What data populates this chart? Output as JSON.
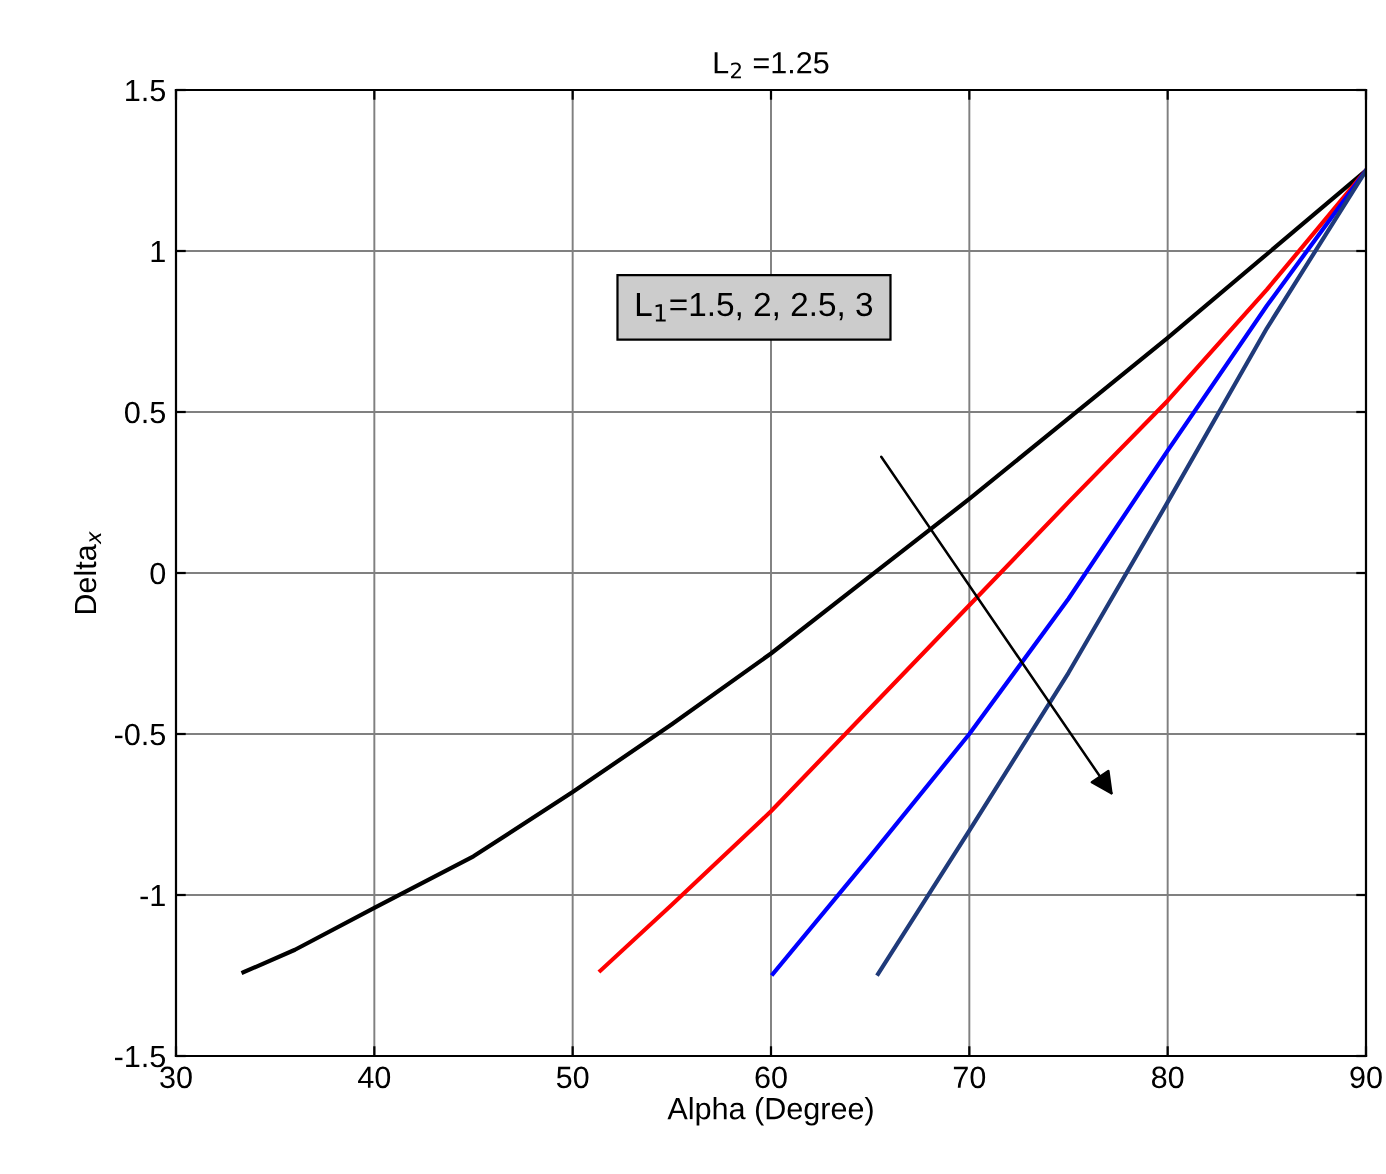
{
  "chart_data": {
    "type": "line",
    "title": "L$_{2}$ =1.25",
    "xlabel": "Alpha (Degree)",
    "ylabel": "Delta$_{x}$",
    "annotations": [
      "L$_{1}$=1.5, 2, 2.5, 3"
    ],
    "xlim": [
      30,
      90
    ],
    "ylim": [
      -1.5,
      1.5
    ],
    "xticks": [
      30,
      40,
      50,
      60,
      70,
      80,
      90
    ],
    "yticks": [
      -1.5,
      -1,
      -0.5,
      0,
      0.5,
      1,
      1.5
    ],
    "grid": true,
    "marker": "none",
    "line_style": "solid",
    "series": [
      {
        "color": "#000000",
        "x": [
          33.4,
          36,
          40,
          45,
          50,
          55,
          60,
          65,
          70,
          75,
          80,
          85,
          90
        ],
        "values": [
          -1.24,
          -1.17,
          -1.04,
          -0.88,
          -0.68,
          -0.47,
          -0.25,
          -0.01,
          0.23,
          0.48,
          0.73,
          0.99,
          1.25
        ]
      },
      {
        "color": "#ff0000",
        "x": [
          51.4,
          55,
          60,
          65,
          70,
          75,
          80,
          85,
          90
        ],
        "values": [
          -1.235,
          -1.03,
          -0.74,
          -0.42,
          -0.1,
          0.22,
          0.535,
          0.88,
          1.25
        ]
      },
      {
        "color": "#0000ff",
        "x": [
          60.1,
          65,
          70,
          75,
          80,
          85,
          90
        ],
        "values": [
          -1.245,
          -0.88,
          -0.5,
          -0.08,
          0.38,
          0.83,
          1.25
        ]
      },
      {
        "color": "#1f3a7a",
        "x": [
          65.4,
          70,
          75,
          80,
          85,
          90
        ],
        "values": [
          -1.245,
          -0.8,
          -0.31,
          0.22,
          0.76,
          1.25
        ]
      }
    ]
  }
}
